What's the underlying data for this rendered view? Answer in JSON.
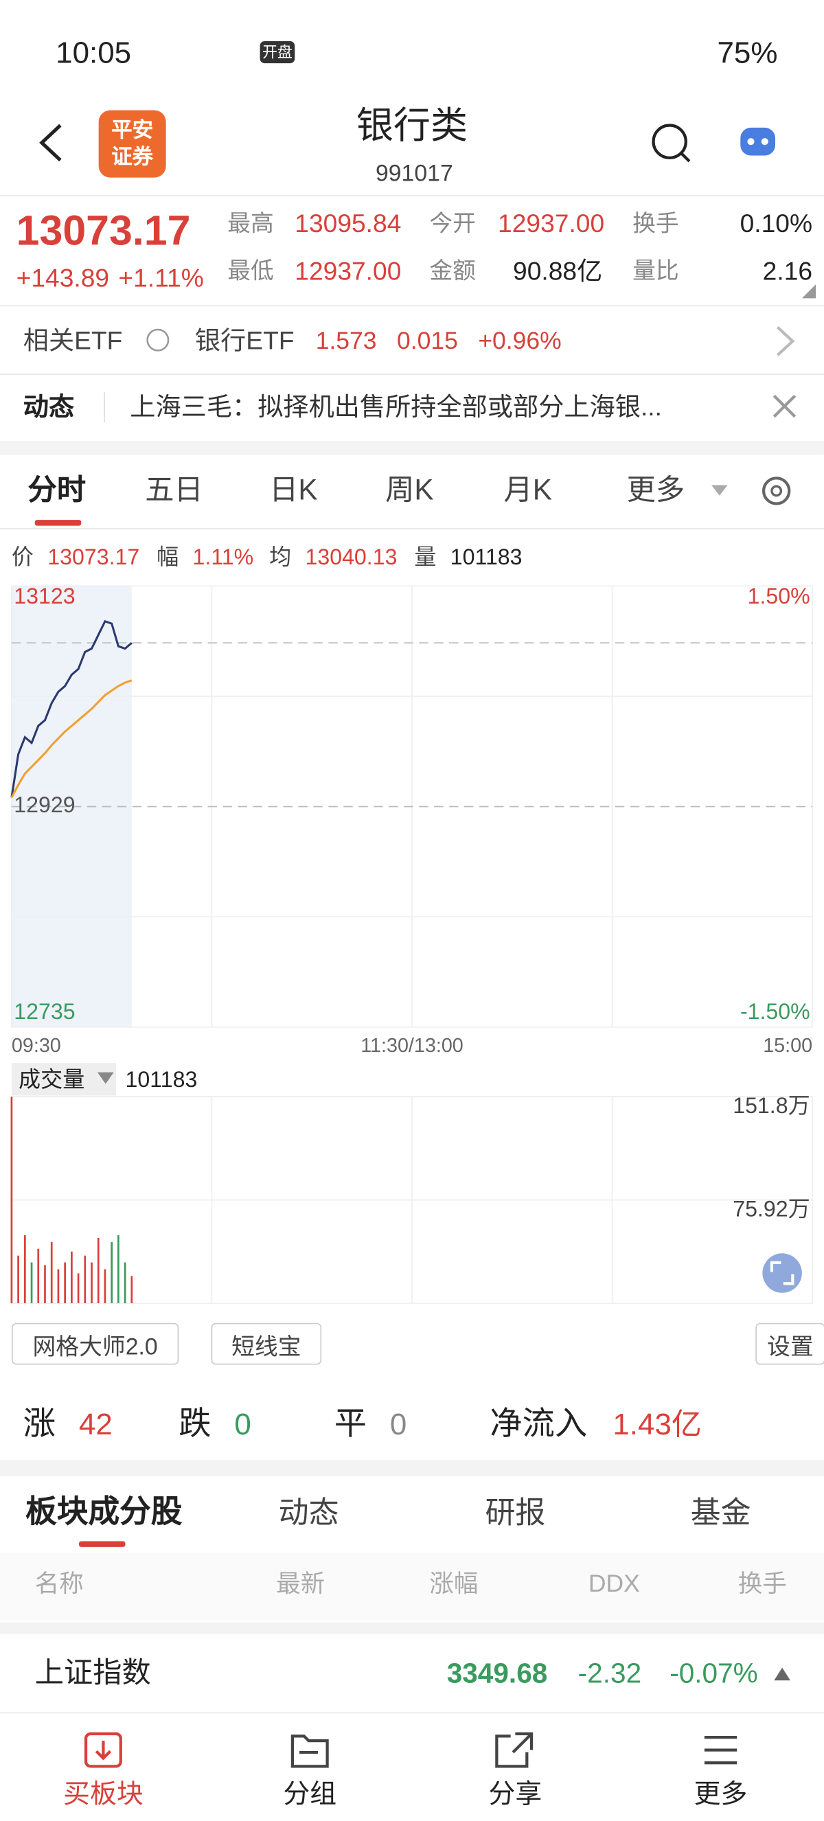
{
  "status_bar": {
    "time": "10:05",
    "badge": "开盘",
    "battery": "75%"
  },
  "header": {
    "logo": [
      "平安",
      "证券"
    ],
    "title": "银行类",
    "code": "991017"
  },
  "quote": {
    "price": "13073.17",
    "change": "+143.89",
    "change_pct": "+1.11%",
    "stats": [
      {
        "label": "最高",
        "value": "13095.84"
      },
      {
        "label": "今开",
        "value": "12937.00"
      },
      {
        "label": "换手",
        "value": "0.10%"
      },
      {
        "label": "最低",
        "value": "12937.00"
      },
      {
        "label": "金额",
        "value": "90.88亿"
      },
      {
        "label": "量比",
        "value": "2.16"
      }
    ]
  },
  "etf": {
    "label": "相关ETF",
    "name": "银行ETF",
    "price": "1.573",
    "change": "0.015",
    "pct": "+0.96%"
  },
  "news": {
    "label": "动态",
    "text": "上海三毛：拟择机出售所持全部或部分上海银..."
  },
  "tabs": [
    "分时",
    "五日",
    "日K",
    "周K",
    "月K",
    "更多"
  ],
  "info": [
    {
      "label": "价",
      "value": "13073.17"
    },
    {
      "label": "幅",
      "value": "1.11%"
    },
    {
      "label": "均",
      "value": "13040.13"
    },
    {
      "label": "量",
      "value": "101183"
    }
  ],
  "chart_data": [
    {
      "type": "line",
      "x": [
        0,
        2,
        4,
        6,
        8,
        10,
        12,
        14,
        16,
        18,
        20,
        22,
        24,
        26,
        28,
        30,
        32,
        34,
        36
      ],
      "series": [
        {
          "color": "#2a3a6e",
          "values": [
            12937,
            12975,
            12990,
            12985,
            13000,
            13005,
            13020,
            13030,
            13035,
            13045,
            13050,
            13065,
            13068,
            13080,
            13092,
            13090,
            13070,
            13068,
            13073
          ]
        },
        {
          "color": "#f0a030",
          "values": [
            12937,
            12948,
            12958,
            12964,
            12970,
            12976,
            12983,
            12989,
            12995,
            13000,
            13005,
            13010,
            13015,
            13021,
            13027,
            13031,
            13035,
            13038,
            13040
          ]
        }
      ],
      "xlim": [
        0,
        240
      ],
      "xticks": [
        {
          "value": 0,
          "label": "09:30"
        },
        {
          "value": 120,
          "label": "11:30/13:00"
        },
        {
          "value": 240,
          "label": "15:00"
        }
      ],
      "ylim": [
        12735,
        13123
      ],
      "yticks": [
        12735,
        12929,
        13123
      ],
      "y2lim": [
        -1.5,
        1.5
      ],
      "y2ticks": [
        {
          "value": -1.5,
          "label": "-1.50%"
        },
        {
          "value": 1.5,
          "label": "1.50%"
        }
      ]
    },
    {
      "type": "bar",
      "label": "成交量",
      "value_text": "101183",
      "x": [
        0,
        2,
        4,
        6,
        8,
        10,
        12,
        14,
        16,
        18,
        20,
        22,
        24,
        26,
        28,
        30,
        32,
        34,
        36
      ],
      "values": [
        151.84,
        35,
        50,
        30,
        40,
        28,
        45,
        25,
        30,
        38,
        22,
        35,
        30,
        48,
        25,
        45,
        50,
        30,
        20
      ],
      "up_color": "#d9403a",
      "down_color": "#3a9a5f",
      "xlim": [
        0,
        240
      ],
      "ylim": [
        0,
        151.84
      ],
      "yticks": [
        {
          "value": 75.92,
          "label": "75.92万"
        },
        {
          "value": 151.84,
          "label": "151.8万"
        }
      ]
    }
  ],
  "buttons": [
    "网格大师2.0",
    "短线宝",
    "设置"
  ],
  "breadth": [
    {
      "label": "涨",
      "value": "42"
    },
    {
      "label": "跌",
      "value": "0"
    },
    {
      "label": "平",
      "value": "0"
    },
    {
      "label": "净流入",
      "value": "1.43亿"
    }
  ],
  "sub_tabs": [
    "板块成分股",
    "动态",
    "研报",
    "基金"
  ],
  "columns": [
    "名称",
    "最新",
    "涨幅",
    "DDX",
    "换手"
  ],
  "rows": [
    [
      "上证指数",
      "3349.68",
      "-2.32",
      "-0.07%"
    ]
  ],
  "nav": [
    "买板块",
    "分组",
    "分享",
    "更多"
  ]
}
